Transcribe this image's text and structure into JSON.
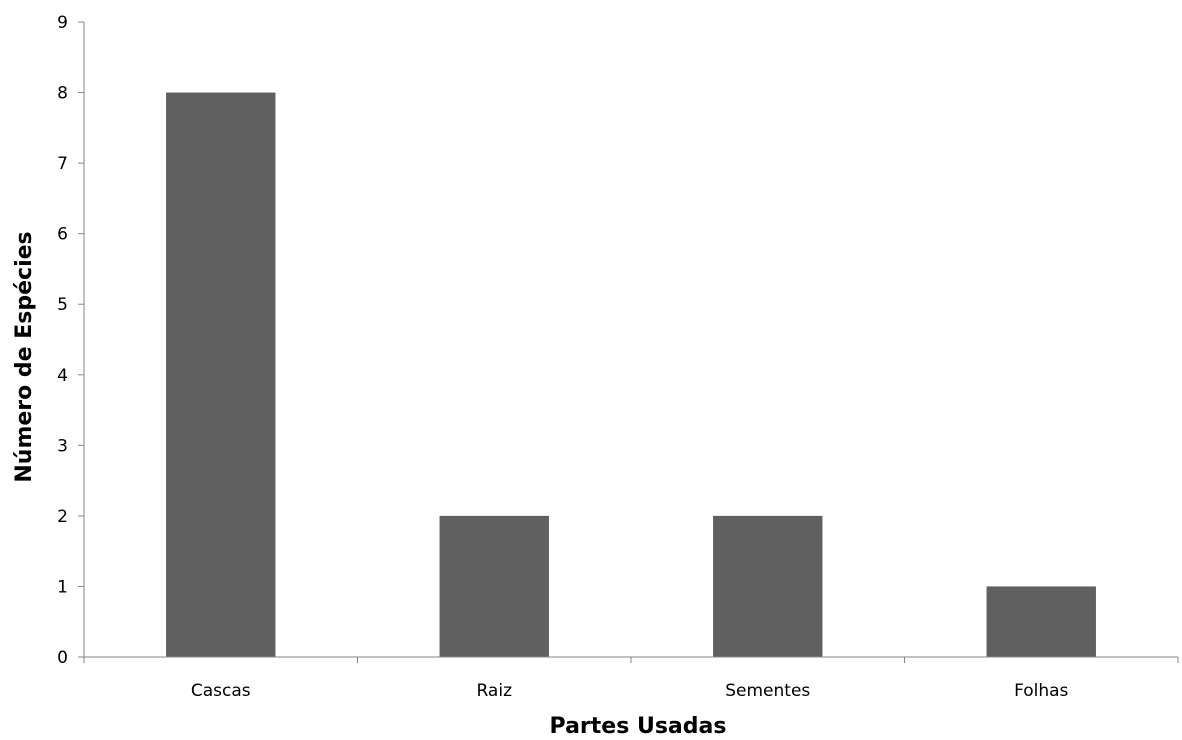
{
  "chart_data": {
    "type": "bar",
    "title": "",
    "xlabel": "Partes Usadas",
    "ylabel": "Número de Espécies",
    "categories": [
      "Cascas",
      "Raiz",
      "Sementes",
      "Folhas"
    ],
    "values": [
      8,
      2,
      2,
      1
    ],
    "ylim": [
      0,
      9
    ],
    "yticks": [
      "0",
      "1",
      "2",
      "3",
      "4",
      "5",
      "6",
      "7",
      "8",
      "9"
    ],
    "grid": false,
    "legend": "none",
    "bar_color": "#606060",
    "axis_color": "#868686"
  }
}
